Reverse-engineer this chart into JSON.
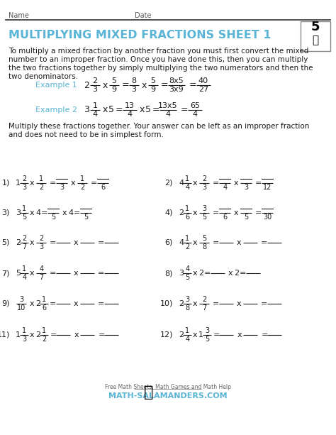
{
  "title": "MULTIPLYING MIXED FRACTIONS SHEET 1",
  "title_color": "#5ab4d6",
  "name_label": "Name",
  "date_label": "Date",
  "example_color": "#5ab4d6",
  "bg_color": "#ffffff",
  "text_color": "#1a1a1a",
  "body_lines": [
    "To multiply a mixed fraction by another fraction you must first convert the mixed",
    "number to an improper fraction. Once you have done this, then you can multiply",
    "the two fractions together by simply multiplying the two numerators and then the",
    "two denominators."
  ],
  "mult_lines": [
    "Multiply these fractions together. Your answer can be left as an improper fraction",
    "and does not need to be in simplest form."
  ]
}
